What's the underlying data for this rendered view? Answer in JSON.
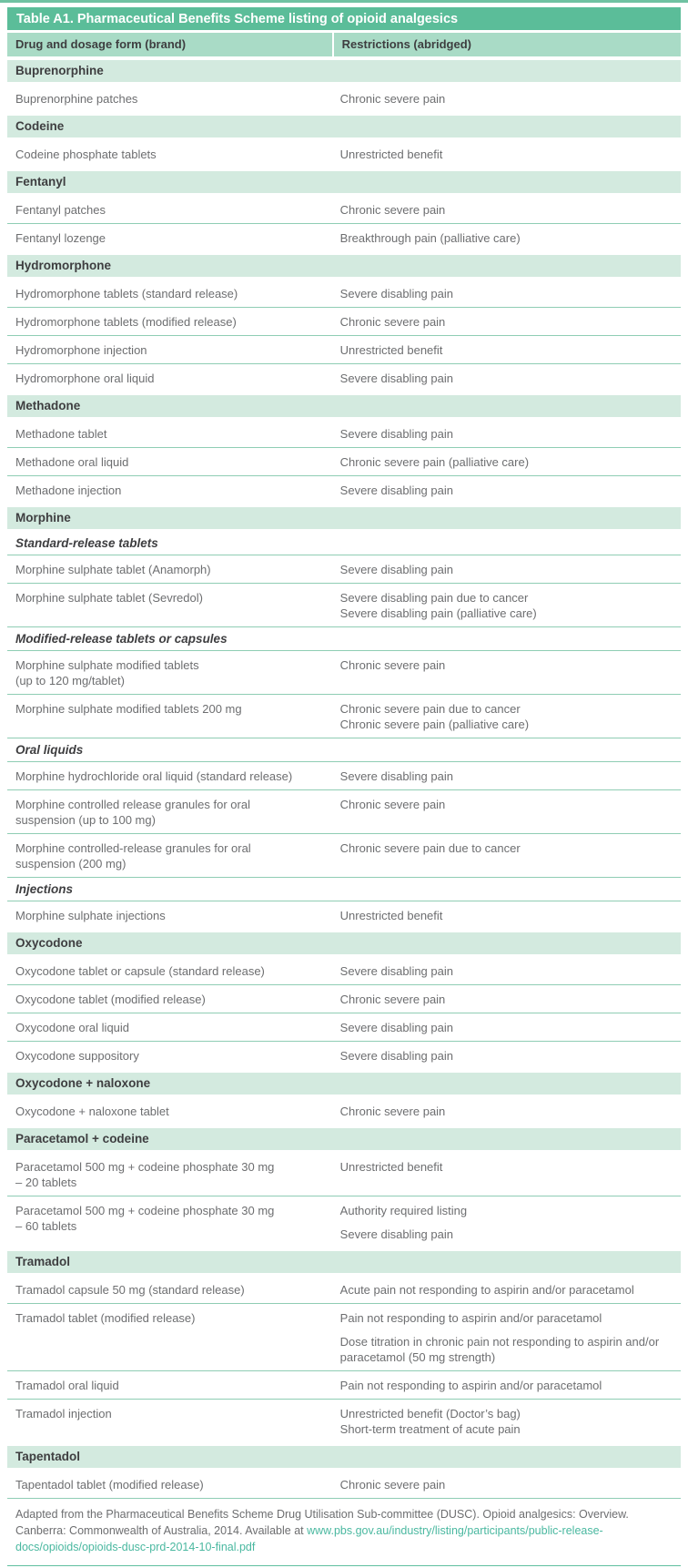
{
  "page": {
    "title": "Table A1. Pharmaceutical Benefits Scheme listing of opioid analgesics",
    "columns": [
      "Drug and dosage form (brand)",
      "Restrictions (abridged)"
    ],
    "colors": {
      "title_bar": "#5bbd99",
      "column_header": "#a9dbc6",
      "section_bar": "#d3eadf",
      "row_divider": "#8fcdb4",
      "body_text": "#6d6e70",
      "heading_text": "#3e3e40",
      "link": "#4ab8a0"
    },
    "sections": [
      {
        "name": "Buprenorphine",
        "items": [
          {
            "type": "row",
            "drug": "Buprenorphine patches",
            "restrictions": [
              "Chronic severe pain"
            ]
          }
        ]
      },
      {
        "name": "Codeine",
        "items": [
          {
            "type": "row",
            "drug": "Codeine phosphate tablets",
            "restrictions": [
              "Unrestricted benefit"
            ]
          }
        ]
      },
      {
        "name": "Fentanyl",
        "items": [
          {
            "type": "row",
            "drug": "Fentanyl patches",
            "restrictions": [
              "Chronic severe pain"
            ]
          },
          {
            "type": "row",
            "drug": "Fentanyl lozenge",
            "restrictions": [
              "Breakthrough pain (palliative care)"
            ]
          }
        ]
      },
      {
        "name": "Hydromorphone",
        "items": [
          {
            "type": "row",
            "drug": "Hydromorphone tablets (standard release)",
            "restrictions": [
              "Severe disabling pain"
            ]
          },
          {
            "type": "row",
            "drug": "Hydromorphone tablets (modified release)",
            "restrictions": [
              "Chronic severe pain"
            ]
          },
          {
            "type": "row",
            "drug": "Hydromorphone injection",
            "restrictions": [
              "Unrestricted benefit"
            ]
          },
          {
            "type": "row",
            "drug": "Hydromorphone oral liquid",
            "restrictions": [
              "Severe disabling pain"
            ]
          }
        ]
      },
      {
        "name": "Methadone",
        "items": [
          {
            "type": "row",
            "drug": "Methadone tablet",
            "restrictions": [
              "Severe disabling pain"
            ]
          },
          {
            "type": "row",
            "drug": "Methadone oral liquid",
            "restrictions": [
              "Chronic severe pain (palliative care)"
            ]
          },
          {
            "type": "row",
            "drug": "Methadone injection",
            "restrictions": [
              "Severe disabling pain"
            ]
          }
        ]
      },
      {
        "name": "Morphine",
        "items": [
          {
            "type": "subheader",
            "label": "Standard-release tablets"
          },
          {
            "type": "row",
            "drug": "Morphine sulphate tablet (Anamorph)",
            "restrictions": [
              "Severe disabling pain"
            ]
          },
          {
            "type": "row",
            "drug": "Morphine sulphate tablet (Sevredol)",
            "restrictions": [
              "Severe disabling pain due to cancer\nSevere disabling pain (palliative care)"
            ]
          },
          {
            "type": "subheader",
            "label": "Modified-release tablets or capsules"
          },
          {
            "type": "row",
            "drug": "Morphine sulphate modified tablets\n(up to 120 mg/tablet)",
            "restrictions": [
              "Chronic severe pain"
            ]
          },
          {
            "type": "row",
            "drug": "Morphine sulphate modified tablets 200 mg",
            "restrictions": [
              "Chronic severe pain due to cancer\nChronic severe pain (palliative care)"
            ]
          },
          {
            "type": "subheader",
            "label": "Oral liquids"
          },
          {
            "type": "row",
            "drug": "Morphine hydrochloride oral liquid (standard release)",
            "restrictions": [
              "Severe disabling pain"
            ]
          },
          {
            "type": "row",
            "drug": "Morphine controlled release granules for oral\nsuspension (up to 100 mg)",
            "restrictions": [
              "Chronic severe pain"
            ]
          },
          {
            "type": "row",
            "drug": "Morphine controlled-release granules for oral\nsuspension (200 mg)",
            "restrictions": [
              "Chronic severe pain due to cancer"
            ]
          },
          {
            "type": "subheader",
            "label": "Injections"
          },
          {
            "type": "row",
            "drug": "Morphine sulphate injections",
            "restrictions": [
              "Unrestricted benefit"
            ]
          }
        ]
      },
      {
        "name": "Oxycodone",
        "items": [
          {
            "type": "row",
            "drug": "Oxycodone tablet or capsule (standard release)",
            "restrictions": [
              "Severe disabling pain"
            ]
          },
          {
            "type": "row",
            "drug": "Oxycodone tablet (modified release)",
            "restrictions": [
              "Chronic severe pain"
            ]
          },
          {
            "type": "row",
            "drug": "Oxycodone oral liquid",
            "restrictions": [
              "Severe disabling pain"
            ]
          },
          {
            "type": "row",
            "drug": "Oxycodone suppository",
            "restrictions": [
              "Severe disabling pain"
            ]
          }
        ]
      },
      {
        "name": "Oxycodone + naloxone",
        "items": [
          {
            "type": "row",
            "drug": "Oxycodone + naloxone tablet",
            "restrictions": [
              "Chronic severe pain"
            ]
          }
        ]
      },
      {
        "name": "Paracetamol + codeine",
        "items": [
          {
            "type": "row",
            "drug": "Paracetamol 500 mg + codeine phosphate 30 mg\n– 20 tablets",
            "restrictions": [
              "Unrestricted benefit"
            ]
          },
          {
            "type": "row",
            "drug": "Paracetamol 500 mg + codeine phosphate 30 mg\n– 60 tablets",
            "restrictions": [
              "Authority required listing",
              "Severe disabling pain"
            ]
          }
        ]
      },
      {
        "name": "Tramadol",
        "items": [
          {
            "type": "row",
            "drug": "Tramadol capsule 50 mg (standard release)",
            "restrictions": [
              "Acute pain not responding to aspirin and/or paracetamol"
            ]
          },
          {
            "type": "row",
            "drug": "Tramadol tablet (modified release)",
            "restrictions": [
              "Pain not responding to aspirin and/or paracetamol",
              "Dose titration in chronic pain not responding to aspirin and/or paracetamol (50 mg strength)"
            ]
          },
          {
            "type": "row",
            "drug": "Tramadol oral liquid",
            "restrictions": [
              "Pain not responding to aspirin and/or paracetamol"
            ]
          },
          {
            "type": "row",
            "drug": "Tramadol injection",
            "restrictions": [
              "Unrestricted benefit (Doctor’s bag)\nShort-term treatment of acute pain"
            ]
          }
        ]
      },
      {
        "name": "Tapentadol",
        "items": [
          {
            "type": "row",
            "drug": "Tapentadol tablet (modified release)",
            "restrictions": [
              "Chronic severe pain"
            ]
          }
        ]
      }
    ],
    "footer": {
      "text_before_link": "Adapted from the Pharmaceutical Benefits Scheme Drug Utilisation Sub-committee (DUSC). Opioid analgesics: Overview. Canberra: Commonwealth of Australia, 2014. Available at ",
      "link_text": "www.pbs.gov.au/industry/listing/participants/public-release-docs/opioids/opioids-dusc-prd-2014-10-final.pdf"
    }
  }
}
